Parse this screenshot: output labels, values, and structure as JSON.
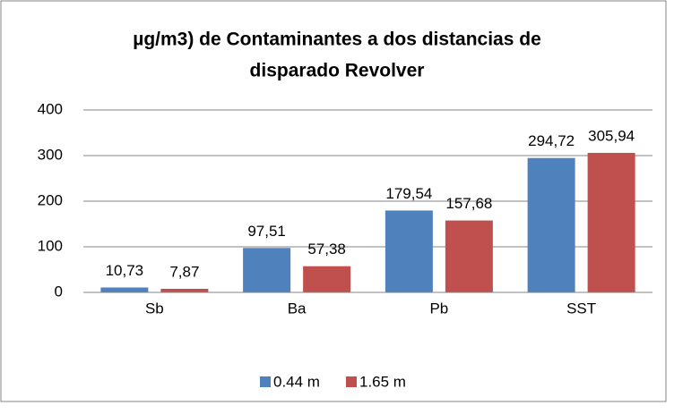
{
  "chart_data": {
    "type": "bar",
    "title": [
      "µg/m3) de Contaminantes a dos distancias de",
      "disparado  Revolver"
    ],
    "categories": [
      "Sb",
      "Ba",
      "Pb",
      "SST"
    ],
    "series": [
      {
        "name": "0.44 m",
        "color": "#4f81bd",
        "values": [
          10.73,
          97.51,
          179.54,
          294.72
        ],
        "value_labels": [
          "10,73",
          "97,51",
          "179,54",
          "294,72"
        ]
      },
      {
        "name": "1.65 m",
        "color": "#c0504d",
        "values": [
          7.87,
          57.38,
          157.68,
          305.94
        ],
        "value_labels": [
          "7,87",
          "57,38",
          "157,68",
          "305,94"
        ]
      }
    ],
    "ylim": [
      0,
      400
    ],
    "yticks": [
      0,
      100,
      200,
      300,
      400
    ],
    "grid": true,
    "legend": "bottom"
  }
}
